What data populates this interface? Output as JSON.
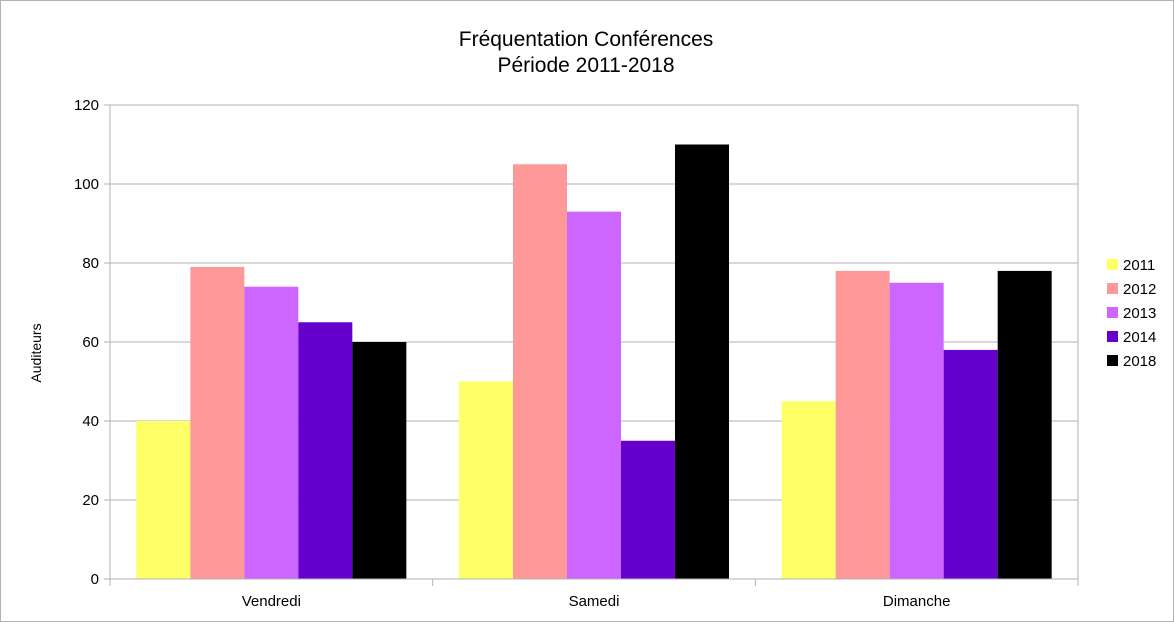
{
  "chart_data": {
    "type": "bar",
    "title": [
      "Fréquentation Conférences",
      "Période 2011-2018"
    ],
    "xlabel": "",
    "ylabel": "Auditeurs",
    "ylim": [
      0,
      120
    ],
    "yticks": [
      0,
      20,
      40,
      60,
      80,
      100,
      120
    ],
    "categories": [
      "Vendredi",
      "Samedi",
      "Dimanche"
    ],
    "series": [
      {
        "name": "2011",
        "color": "#ffff66",
        "values": [
          40,
          50,
          45
        ]
      },
      {
        "name": "2012",
        "color": "#ff9999",
        "values": [
          79,
          105,
          78
        ]
      },
      {
        "name": "2013",
        "color": "#cc66ff",
        "values": [
          74,
          93,
          75
        ]
      },
      {
        "name": "2014",
        "color": "#6600cc",
        "values": [
          65,
          35,
          58
        ]
      },
      {
        "name": "2018",
        "color": "#000000",
        "values": [
          60,
          110,
          78
        ]
      }
    ],
    "grid": true,
    "legend_position": "right"
  }
}
